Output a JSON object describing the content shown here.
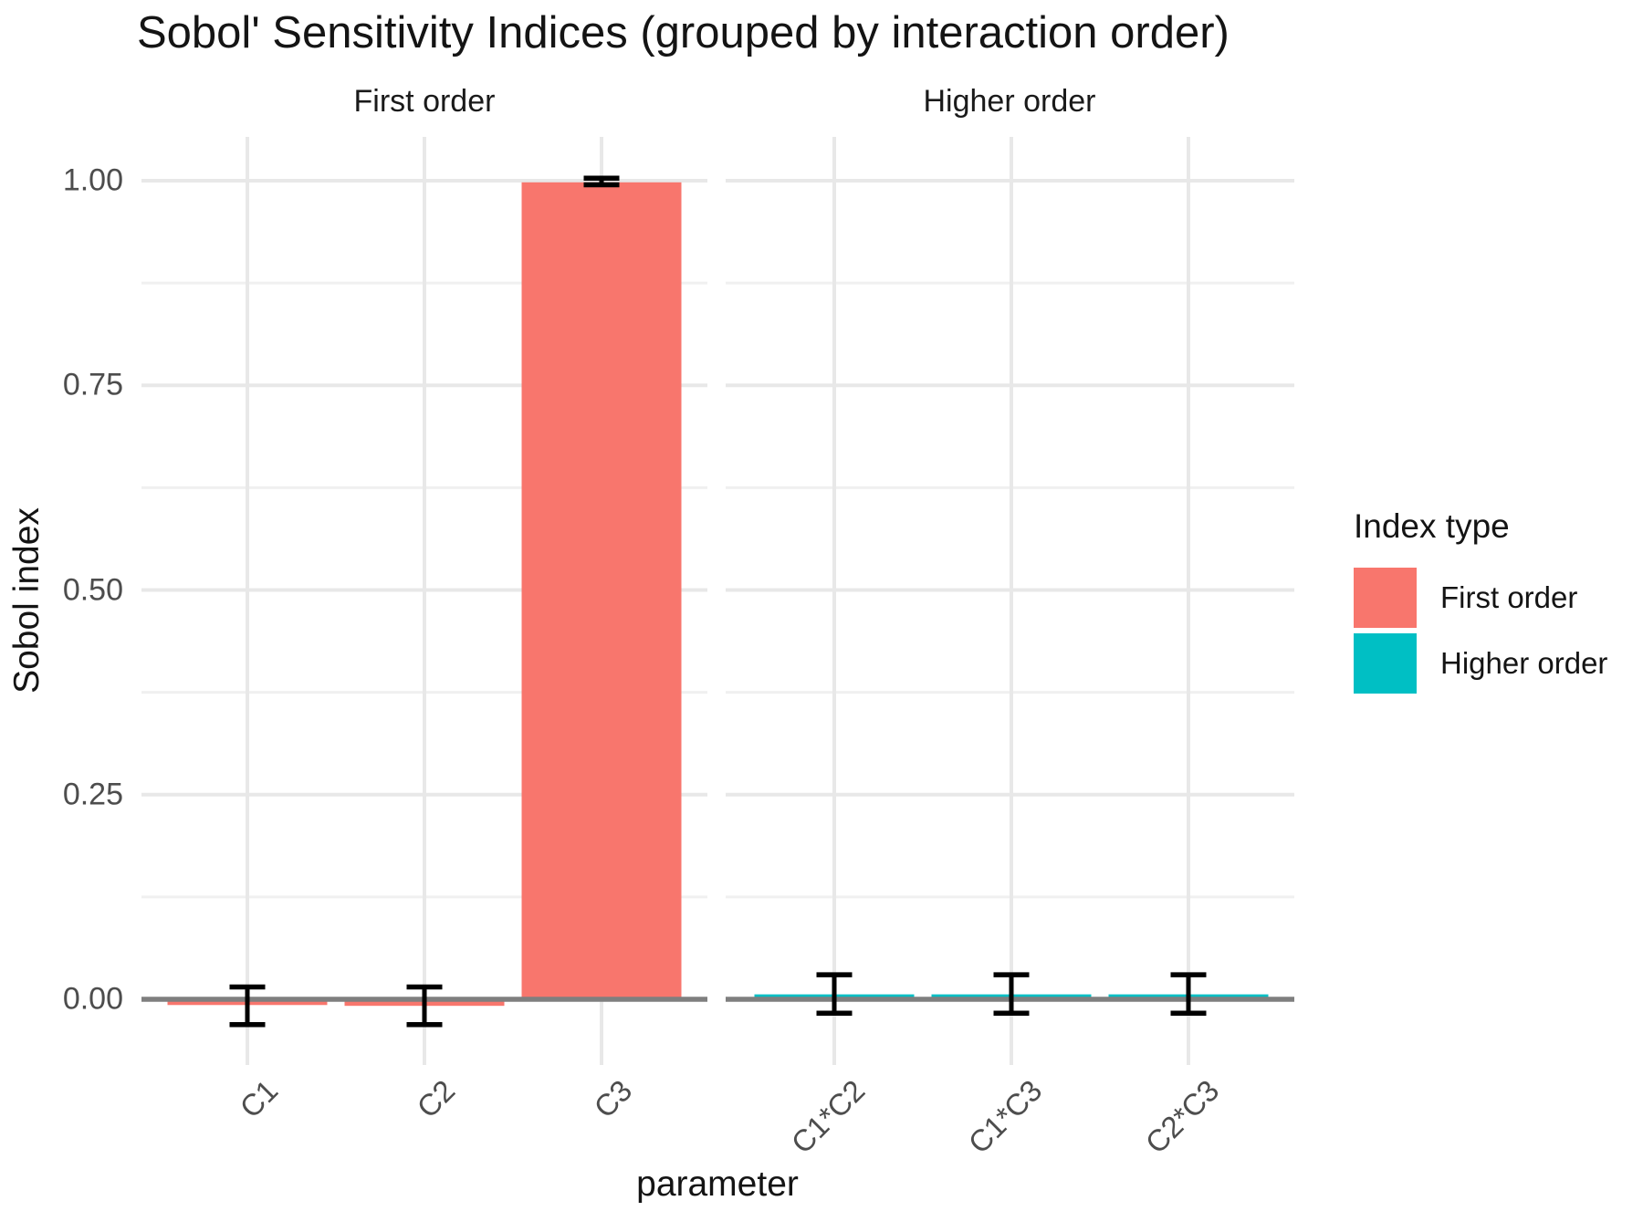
{
  "title": "Sobol' Sensitivity Indices (grouped by interaction order)",
  "axes": {
    "x_title": "parameter",
    "y_title": "Sobol index",
    "y_tick_labels": [
      "0.00",
      "0.25",
      "0.50",
      "0.75",
      "1.00"
    ],
    "y_tick_values": [
      0,
      0.25,
      0.5,
      0.75,
      1.0
    ]
  },
  "legend": {
    "title": "Index type",
    "items": [
      {
        "label": "First order",
        "color": "#F8766D"
      },
      {
        "label": "Higher order",
        "color": "#00BFC4"
      }
    ]
  },
  "chart_data": {
    "type": "bar",
    "title": "Sobol' Sensitivity Indices (grouped by interaction order)",
    "xlabel": "parameter",
    "ylabel": "Sobol index",
    "ylim": [
      -0.08,
      1.05
    ],
    "grid": true,
    "legend_position": "right",
    "legend_title": "Index type",
    "facets": [
      {
        "label": "First order",
        "series": "First order",
        "color": "#F8766D",
        "categories": [
          "C1",
          "C2",
          "C3"
        ],
        "values": [
          -0.007,
          -0.008,
          0.998
        ],
        "ci_low": [
          -0.031,
          -0.031,
          0.995
        ],
        "ci_high": [
          0.015,
          0.015,
          1.003
        ]
      },
      {
        "label": "Higher order",
        "series": "Higher order",
        "color": "#00BFC4",
        "categories": [
          "C1*C2",
          "C1*C3",
          "C2*C3"
        ],
        "values": [
          0.006,
          0.006,
          0.006
        ],
        "ci_low": [
          -0.017,
          -0.017,
          -0.017
        ],
        "ci_high": [
          0.03,
          0.03,
          0.03
        ]
      }
    ]
  },
  "style": {
    "grid_major": "#E8E8E8",
    "grid_minor": "#F0F0F0",
    "zero_line": "#7F7F7F",
    "error_bar": "#000000",
    "tick_text": "#4d4d4d"
  }
}
